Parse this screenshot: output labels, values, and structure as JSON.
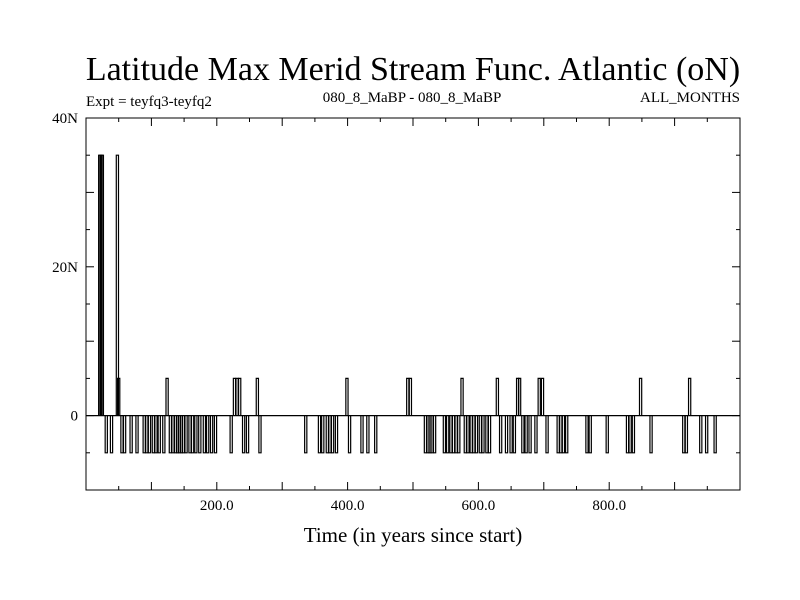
{
  "chart_data": {
    "type": "line",
    "title": "Latitude Max Merid Stream Func. Atlantic (oN)",
    "experiment_label": "Expt = teyfq3-teyfq2",
    "period_label": "080_8_MaBP - 080_8_MaBP",
    "season_label": "ALL_MONTHS",
    "xlabel": "Time (in years since start)",
    "ylabel": "",
    "xlim": [
      0,
      1000
    ],
    "ylim": [
      -10,
      40
    ],
    "x_ticks": [
      {
        "value": 200,
        "label": "200.0"
      },
      {
        "value": 400,
        "label": "400.0"
      },
      {
        "value": 600,
        "label": "600.0"
      },
      {
        "value": 800,
        "label": "800.0"
      }
    ],
    "y_ticks": [
      {
        "value": 0,
        "label": "0"
      },
      {
        "value": 20,
        "label": "20N"
      },
      {
        "value": 40,
        "label": "40N"
      }
    ],
    "baseline": 0,
    "series": [
      {
        "events": [
          {
            "x": 21,
            "y": 35
          },
          {
            "x": 23,
            "y": 35
          },
          {
            "x": 25,
            "y": 35
          },
          {
            "x": 31,
            "y": -5
          },
          {
            "x": 39,
            "y": -5
          },
          {
            "x": 48,
            "y": 35
          },
          {
            "x": 50,
            "y": 5
          },
          {
            "x": 55,
            "y": -5
          },
          {
            "x": 59,
            "y": -5
          },
          {
            "x": 69,
            "y": -5
          },
          {
            "x": 78,
            "y": -5
          },
          {
            "x": 89,
            "y": -5
          },
          {
            "x": 93,
            "y": -5
          },
          {
            "x": 97,
            "y": -5
          },
          {
            "x": 103,
            "y": -5
          },
          {
            "x": 107,
            "y": -5
          },
          {
            "x": 112,
            "y": -5
          },
          {
            "x": 119,
            "y": -5
          },
          {
            "x": 124,
            "y": 5
          },
          {
            "x": 129,
            "y": -5
          },
          {
            "x": 133,
            "y": -5
          },
          {
            "x": 137,
            "y": -5
          },
          {
            "x": 140,
            "y": -5
          },
          {
            "x": 143,
            "y": -5
          },
          {
            "x": 146,
            "y": -5
          },
          {
            "x": 149,
            "y": -5
          },
          {
            "x": 153,
            "y": -5
          },
          {
            "x": 159,
            "y": -5
          },
          {
            "x": 163,
            "y": -5
          },
          {
            "x": 168,
            "y": -5
          },
          {
            "x": 174,
            "y": -5
          },
          {
            "x": 181,
            "y": -5
          },
          {
            "x": 186,
            "y": -5
          },
          {
            "x": 192,
            "y": -5
          },
          {
            "x": 198,
            "y": -5
          },
          {
            "x": 222,
            "y": -5
          },
          {
            "x": 227,
            "y": 5
          },
          {
            "x": 231,
            "y": 5
          },
          {
            "x": 235,
            "y": 5
          },
          {
            "x": 241,
            "y": -5
          },
          {
            "x": 247,
            "y": -5
          },
          {
            "x": 262,
            "y": 5
          },
          {
            "x": 266,
            "y": -5
          },
          {
            "x": 336,
            "y": -5
          },
          {
            "x": 357,
            "y": -5
          },
          {
            "x": 362,
            "y": -5
          },
          {
            "x": 369,
            "y": -5
          },
          {
            "x": 373,
            "y": -5
          },
          {
            "x": 377,
            "y": -5
          },
          {
            "x": 383,
            "y": -5
          },
          {
            "x": 399,
            "y": 5
          },
          {
            "x": 403,
            "y": -5
          },
          {
            "x": 422,
            "y": -5
          },
          {
            "x": 431,
            "y": -5
          },
          {
            "x": 443,
            "y": -5
          },
          {
            "x": 492,
            "y": 5
          },
          {
            "x": 496,
            "y": 5
          },
          {
            "x": 519,
            "y": -5
          },
          {
            "x": 523,
            "y": -5
          },
          {
            "x": 526,
            "y": -5
          },
          {
            "x": 529,
            "y": -5
          },
          {
            "x": 533,
            "y": -5
          },
          {
            "x": 548,
            "y": -5
          },
          {
            "x": 553,
            "y": -5
          },
          {
            "x": 558,
            "y": -5
          },
          {
            "x": 562,
            "y": -5
          },
          {
            "x": 566,
            "y": -5
          },
          {
            "x": 570,
            "y": -5
          },
          {
            "x": 575,
            "y": 5
          },
          {
            "x": 580,
            "y": -5
          },
          {
            "x": 584,
            "y": -5
          },
          {
            "x": 589,
            "y": -5
          },
          {
            "x": 593,
            "y": -5
          },
          {
            "x": 597,
            "y": -5
          },
          {
            "x": 603,
            "y": -5
          },
          {
            "x": 607,
            "y": -5
          },
          {
            "x": 613,
            "y": -5
          },
          {
            "x": 617,
            "y": -5
          },
          {
            "x": 629,
            "y": 5
          },
          {
            "x": 634,
            "y": -5
          },
          {
            "x": 643,
            "y": -5
          },
          {
            "x": 650,
            "y": -5
          },
          {
            "x": 655,
            "y": -5
          },
          {
            "x": 660,
            "y": 5
          },
          {
            "x": 663,
            "y": 5
          },
          {
            "x": 668,
            "y": -5
          },
          {
            "x": 673,
            "y": -5
          },
          {
            "x": 679,
            "y": -5
          },
          {
            "x": 688,
            "y": -5
          },
          {
            "x": 693,
            "y": 5
          },
          {
            "x": 698,
            "y": 5
          },
          {
            "x": 705,
            "y": -5
          },
          {
            "x": 722,
            "y": -5
          },
          {
            "x": 726,
            "y": -5
          },
          {
            "x": 730,
            "y": -5
          },
          {
            "x": 735,
            "y": -5
          },
          {
            "x": 766,
            "y": -5
          },
          {
            "x": 771,
            "y": -5
          },
          {
            "x": 797,
            "y": -5
          },
          {
            "x": 828,
            "y": -5
          },
          {
            "x": 832,
            "y": -5
          },
          {
            "x": 837,
            "y": -5
          },
          {
            "x": 848,
            "y": 5
          },
          {
            "x": 864,
            "y": -5
          },
          {
            "x": 914,
            "y": -5
          },
          {
            "x": 918,
            "y": -5
          },
          {
            "x": 923,
            "y": 5
          },
          {
            "x": 940,
            "y": -5
          },
          {
            "x": 949,
            "y": -5
          },
          {
            "x": 962,
            "y": -5
          }
        ]
      }
    ]
  }
}
